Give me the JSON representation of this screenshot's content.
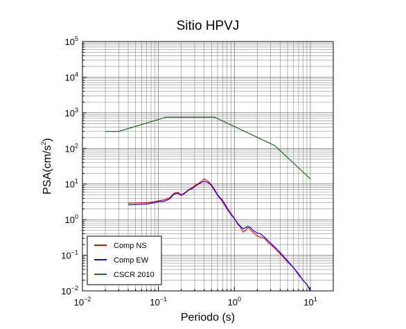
{
  "chart_data": {
    "type": "line",
    "title": "Sitio HPVJ",
    "xlabel": "Periodo (s)",
    "ylabel": "PSA(cm/s²)",
    "xscale": "log",
    "yscale": "log",
    "xlim": [
      0.01,
      20
    ],
    "ylim": [
      0.01,
      100000
    ],
    "grid": true,
    "legend_position": "bottom-left",
    "x_ticks": [
      {
        "base": "10",
        "exp": "−2"
      },
      {
        "base": "10",
        "exp": "−1"
      },
      {
        "base": "10",
        "exp": "0"
      },
      {
        "base": "10",
        "exp": "1"
      }
    ],
    "y_ticks": [
      {
        "base": "10",
        "exp": "−2"
      },
      {
        "base": "10",
        "exp": "−1"
      },
      {
        "base": "10",
        "exp": "0"
      },
      {
        "base": "10",
        "exp": "1"
      },
      {
        "base": "10",
        "exp": "2"
      },
      {
        "base": "10",
        "exp": "3"
      },
      {
        "base": "10",
        "exp": "4"
      },
      {
        "base": "10",
        "exp": "5"
      }
    ],
    "series": [
      {
        "name": "Comp NS",
        "color": "#ff0000",
        "points": [
          [
            0.04,
            2.9
          ],
          [
            0.05,
            2.95
          ],
          [
            0.06,
            3.0
          ],
          [
            0.07,
            3.0
          ],
          [
            0.08,
            3.1
          ],
          [
            0.09,
            3.2
          ],
          [
            0.1,
            3.4
          ],
          [
            0.12,
            3.6
          ],
          [
            0.14,
            4.1
          ],
          [
            0.16,
            5.5
          ],
          [
            0.18,
            5.8
          ],
          [
            0.2,
            5.0
          ],
          [
            0.22,
            5.6
          ],
          [
            0.25,
            7.0
          ],
          [
            0.28,
            8.0
          ],
          [
            0.3,
            9.0
          ],
          [
            0.35,
            11.0
          ],
          [
            0.4,
            14.0
          ],
          [
            0.45,
            12.0
          ],
          [
            0.5,
            9.5
          ],
          [
            0.55,
            7.0
          ],
          [
            0.6,
            5.0
          ],
          [
            0.7,
            3.5
          ],
          [
            0.8,
            2.2
          ],
          [
            0.9,
            1.5
          ],
          [
            1.0,
            1.1
          ],
          [
            1.1,
            0.75
          ],
          [
            1.2,
            0.62
          ],
          [
            1.3,
            0.45
          ],
          [
            1.4,
            0.5
          ],
          [
            1.5,
            0.6
          ],
          [
            1.6,
            0.55
          ],
          [
            1.8,
            0.42
          ],
          [
            2.0,
            0.35
          ],
          [
            2.2,
            0.32
          ],
          [
            2.5,
            0.3
          ],
          [
            2.8,
            0.22
          ],
          [
            3.0,
            0.2
          ],
          [
            3.5,
            0.15
          ],
          [
            4.0,
            0.11
          ],
          [
            4.5,
            0.085
          ],
          [
            5.0,
            0.065
          ],
          [
            6.0,
            0.045
          ],
          [
            7.0,
            0.028
          ],
          [
            8.0,
            0.02
          ],
          [
            9.0,
            0.015
          ],
          [
            10.0,
            0.011
          ]
        ]
      },
      {
        "name": "Comp EW",
        "color": "#0000ff",
        "points": [
          [
            0.04,
            2.6
          ],
          [
            0.05,
            2.65
          ],
          [
            0.06,
            2.7
          ],
          [
            0.07,
            2.75
          ],
          [
            0.08,
            2.9
          ],
          [
            0.09,
            3.0
          ],
          [
            0.1,
            3.2
          ],
          [
            0.12,
            3.3
          ],
          [
            0.14,
            3.8
          ],
          [
            0.16,
            5.2
          ],
          [
            0.18,
            5.5
          ],
          [
            0.2,
            4.8
          ],
          [
            0.22,
            5.4
          ],
          [
            0.25,
            6.8
          ],
          [
            0.28,
            7.5
          ],
          [
            0.3,
            8.5
          ],
          [
            0.35,
            10.5
          ],
          [
            0.4,
            12.0
          ],
          [
            0.45,
            11.0
          ],
          [
            0.5,
            9.0
          ],
          [
            0.55,
            6.5
          ],
          [
            0.6,
            4.8
          ],
          [
            0.7,
            3.2
          ],
          [
            0.8,
            2.0
          ],
          [
            0.9,
            1.4
          ],
          [
            1.0,
            1.05
          ],
          [
            1.1,
            0.8
          ],
          [
            1.2,
            0.65
          ],
          [
            1.3,
            0.55
          ],
          [
            1.4,
            0.6
          ],
          [
            1.5,
            0.65
          ],
          [
            1.6,
            0.62
          ],
          [
            1.8,
            0.48
          ],
          [
            2.0,
            0.42
          ],
          [
            2.2,
            0.4
          ],
          [
            2.5,
            0.32
          ],
          [
            2.8,
            0.25
          ],
          [
            3.0,
            0.22
          ],
          [
            3.5,
            0.16
          ],
          [
            4.0,
            0.12
          ],
          [
            4.5,
            0.09
          ],
          [
            5.0,
            0.07
          ],
          [
            6.0,
            0.045
          ],
          [
            7.0,
            0.03
          ],
          [
            8.0,
            0.02
          ],
          [
            9.0,
            0.015
          ],
          [
            10.0,
            0.01
          ]
        ]
      },
      {
        "name": "CSCR 2010",
        "color": "#1a6b1a",
        "points": [
          [
            0.02,
            300
          ],
          [
            0.03,
            300
          ],
          [
            0.125,
            750
          ],
          [
            0.55,
            750
          ],
          [
            3.4,
            120
          ],
          [
            10.0,
            14
          ]
        ]
      }
    ]
  }
}
